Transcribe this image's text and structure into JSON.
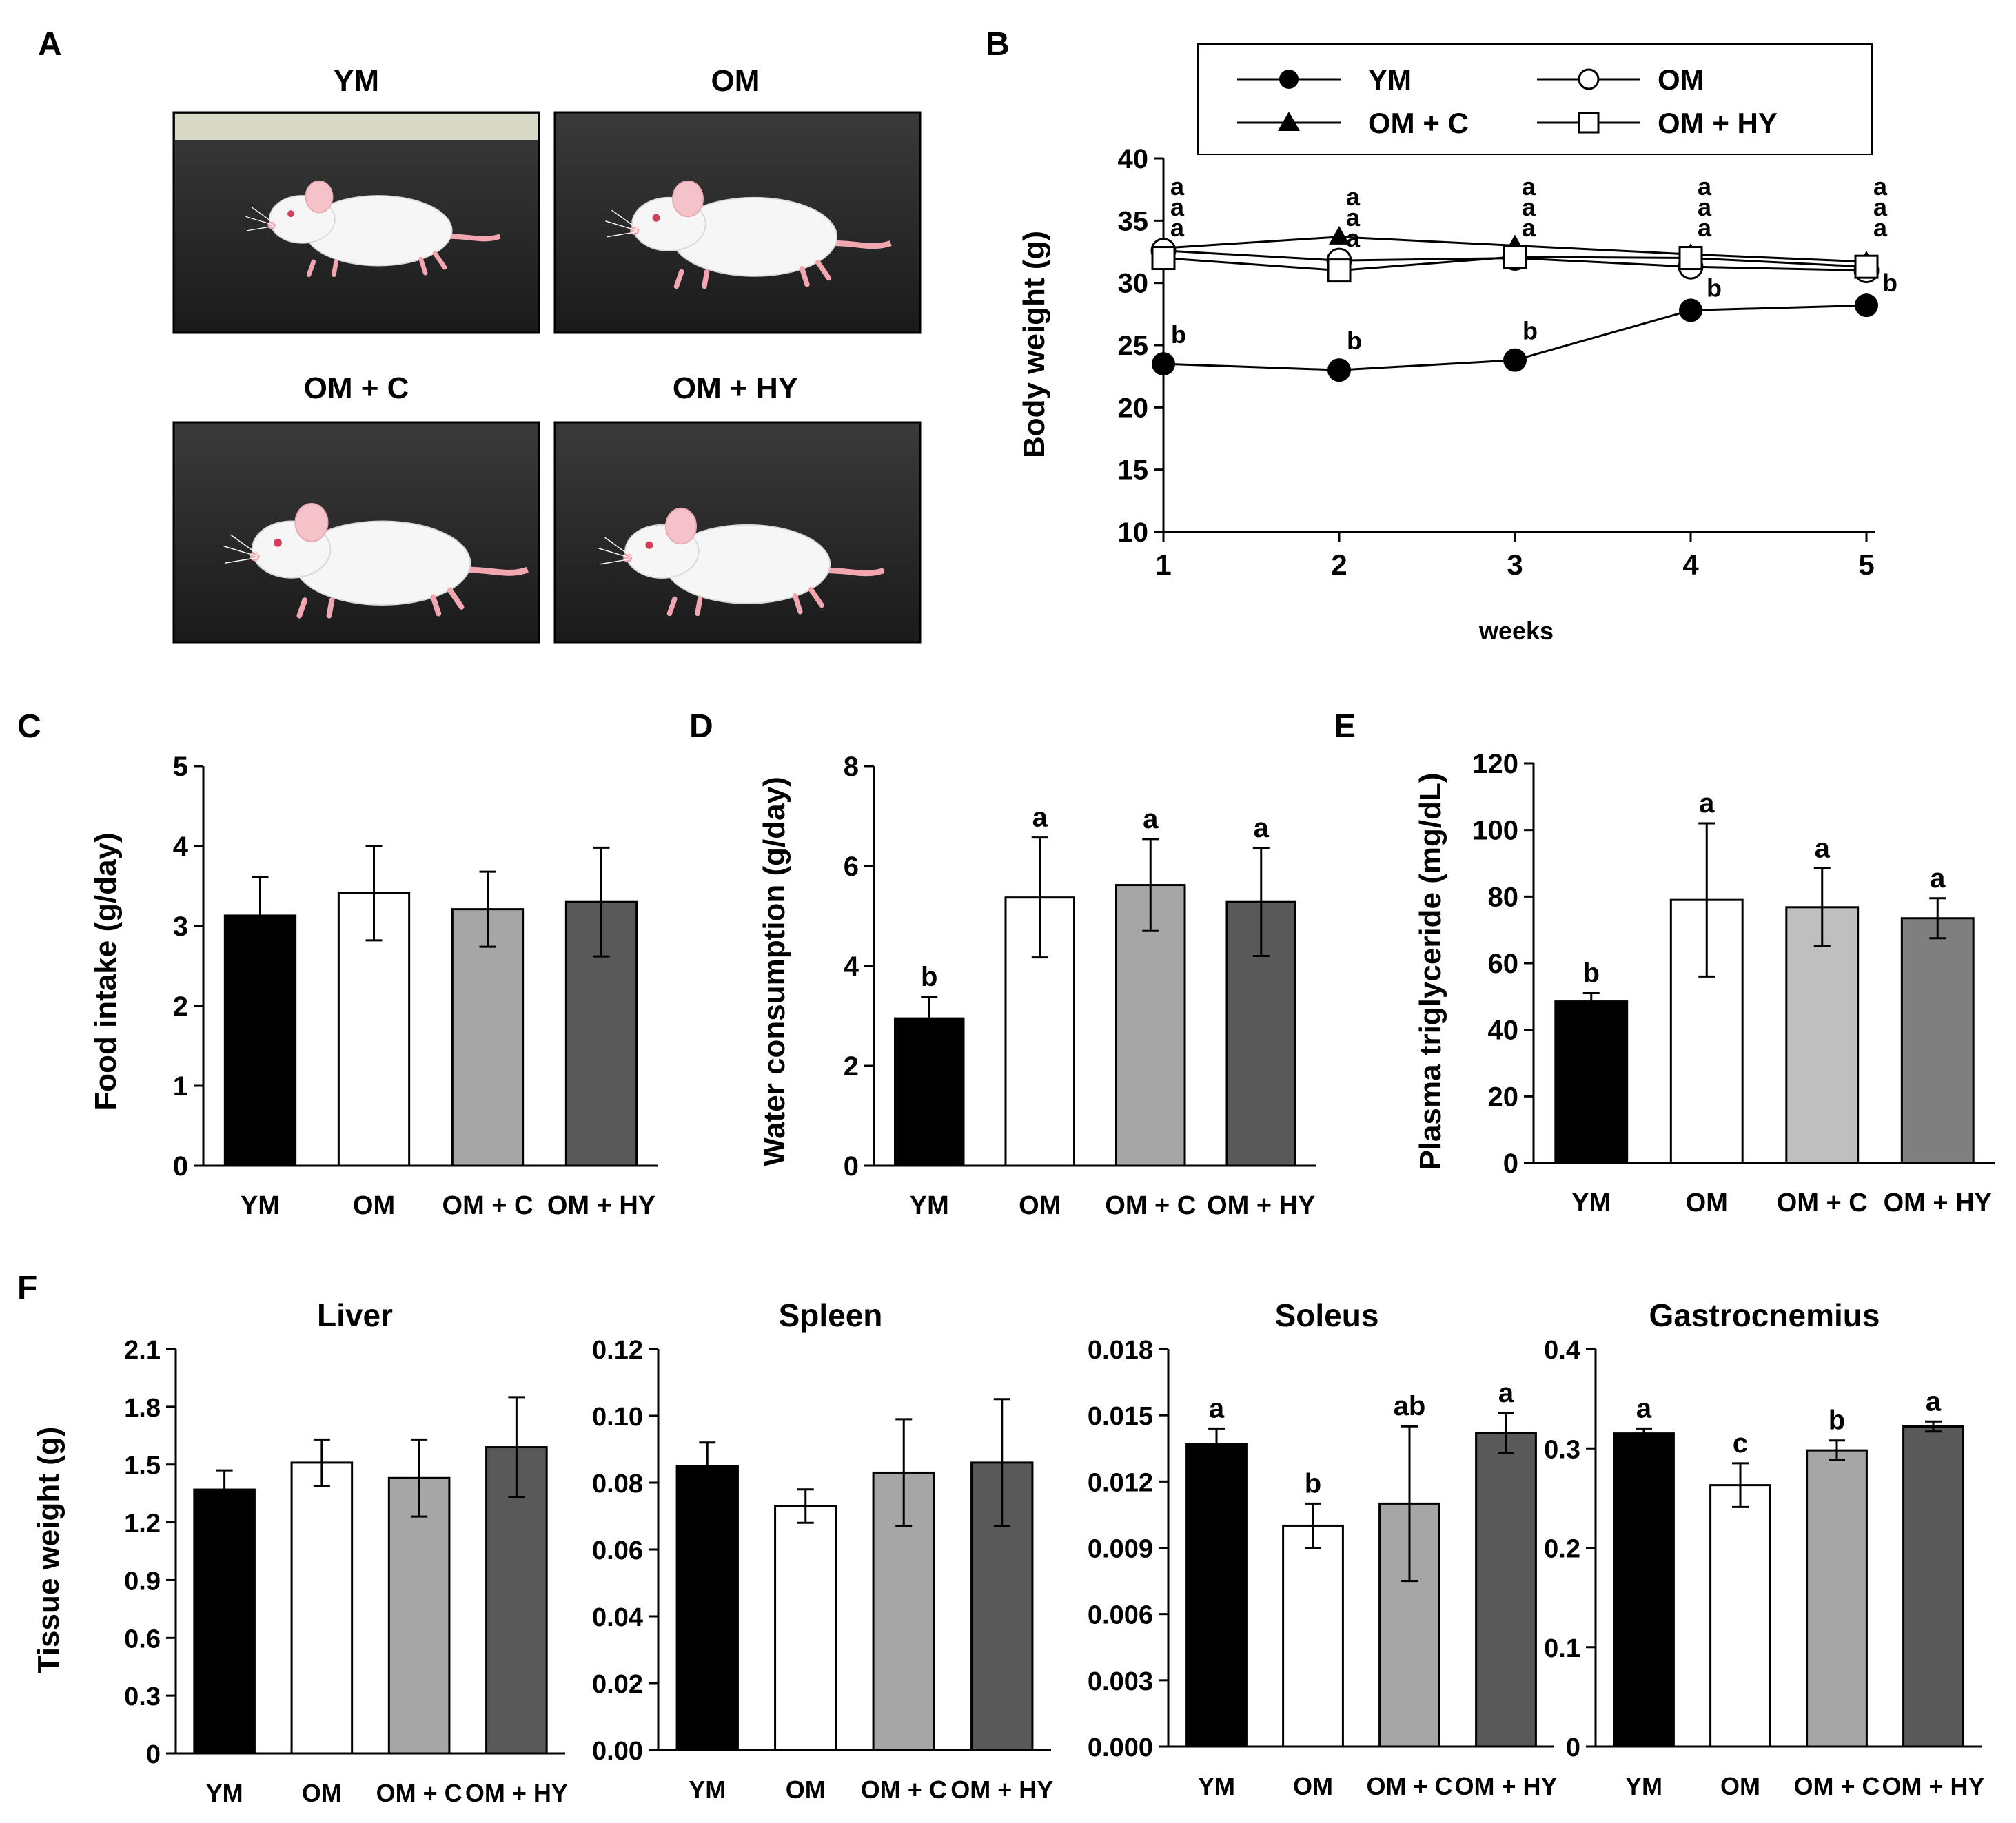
{
  "figure": {
    "panel_letters": {
      "A": "A",
      "B": "B",
      "C": "C",
      "D": "D",
      "E": "E",
      "F": "F"
    }
  },
  "groups": [
    "YM",
    "OM",
    "OM + C",
    "OM + HY"
  ],
  "colors": {
    "ym": "#000000",
    "om": "#ffffff",
    "omc": "#a6a6a6",
    "omhy": "#595959",
    "omc_light": "#bfbfbf",
    "omhy_mid": "#7f7f7f"
  },
  "photos": {
    "titles": [
      "YM",
      "OM",
      "OM + C",
      "OM + HY"
    ]
  },
  "chart_data": [
    {
      "id": "B",
      "type": "line",
      "ylabel": "Body weight (g)",
      "xlabel": "weeks",
      "x": [
        1,
        2,
        3,
        4,
        5
      ],
      "ylim": [
        10,
        40
      ],
      "yticks": [
        10,
        15,
        20,
        25,
        30,
        35,
        40
      ],
      "legend": [
        "YM",
        "OM",
        "OM + C",
        "OM + HY"
      ],
      "series": [
        {
          "name": "YM",
          "marker": "filled-circle",
          "values": [
            23.5,
            23.0,
            23.8,
            27.8,
            28.2
          ],
          "letters": [
            "b",
            "b",
            "b",
            "b",
            "b"
          ]
        },
        {
          "name": "OM",
          "marker": "open-circle",
          "values": [
            32.6,
            31.8,
            32.0,
            31.3,
            31.0
          ],
          "letters": [
            "a",
            "a",
            "a",
            "a",
            "a"
          ]
        },
        {
          "name": "OM + C",
          "marker": "filled-triangle",
          "values": [
            32.8,
            33.7,
            33.0,
            32.3,
            31.7
          ],
          "letters": [
            "a",
            "a",
            "a",
            "a",
            "a"
          ]
        },
        {
          "name": "OM + HY",
          "marker": "open-square",
          "values": [
            32.0,
            31.0,
            32.1,
            32.0,
            31.3
          ],
          "letters": [
            "a",
            "a",
            "a",
            "a",
            "a"
          ]
        }
      ]
    },
    {
      "id": "C",
      "type": "bar",
      "ylabel": "Food intake (g/day)",
      "categories": [
        "YM",
        "OM",
        "OM + C",
        "OM + HY"
      ],
      "values": [
        3.13,
        3.41,
        3.21,
        3.3
      ],
      "errors": [
        0.48,
        0.59,
        0.47,
        0.68
      ],
      "letters": [
        "",
        "",
        "",
        ""
      ],
      "ylim": [
        0,
        5
      ],
      "yticks": [
        0,
        1,
        2,
        3,
        4,
        5
      ]
    },
    {
      "id": "D",
      "type": "bar",
      "ylabel": "Water consumption (g/day)",
      "categories": [
        "YM",
        "OM",
        "OM + C",
        "OM + HY"
      ],
      "values": [
        2.95,
        5.37,
        5.62,
        5.28
      ],
      "errors": [
        0.43,
        1.2,
        0.92,
        1.08
      ],
      "letters": [
        "b",
        "a",
        "a",
        "a"
      ],
      "ylim": [
        0,
        8
      ],
      "yticks": [
        0,
        2,
        4,
        6,
        8
      ]
    },
    {
      "id": "E",
      "type": "bar",
      "ylabel": "Plasma triglyceride (mg/dL)",
      "categories": [
        "YM",
        "OM",
        "OM + C",
        "OM + HY"
      ],
      "values": [
        48.5,
        79.0,
        76.8,
        73.5
      ],
      "errors": [
        2.5,
        23.0,
        11.7,
        6.0
      ],
      "letters": [
        "b",
        "a",
        "a",
        "a"
      ],
      "ylim": [
        0,
        120
      ],
      "yticks": [
        0,
        20,
        40,
        60,
        80,
        100,
        120
      ]
    },
    {
      "id": "F1",
      "type": "bar",
      "title": "Liver",
      "ylabel": "Tissue weight (g)",
      "categories": [
        "YM",
        "OM",
        "OM + C",
        "OM + HY"
      ],
      "values": [
        1.37,
        1.51,
        1.43,
        1.59
      ],
      "errors": [
        0.1,
        0.12,
        0.2,
        0.26
      ],
      "letters": [
        "",
        "",
        "",
        ""
      ],
      "ylim": [
        0,
        2.1
      ],
      "yticks": [
        "0",
        "0.3",
        "0.6",
        "0.9",
        "1.2",
        "1.5",
        "1.8",
        "2.1"
      ]
    },
    {
      "id": "F2",
      "type": "bar",
      "title": "Spleen",
      "categories": [
        "YM",
        "OM",
        "OM + C",
        "OM + HY"
      ],
      "values": [
        0.085,
        0.073,
        0.083,
        0.086
      ],
      "errors": [
        0.007,
        0.005,
        0.016,
        0.019
      ],
      "letters": [
        "",
        "",
        "",
        ""
      ],
      "ylim": [
        0,
        0.12
      ],
      "yticks": [
        "0.00",
        "0.02",
        "0.04",
        "0.06",
        "0.08",
        "0.10",
        "0.12"
      ]
    },
    {
      "id": "F3",
      "type": "bar",
      "title": "Soleus",
      "categories": [
        "YM",
        "OM",
        "OM + C",
        "OM + HY"
      ],
      "values": [
        0.0137,
        0.01,
        0.011,
        0.0142
      ],
      "errors": [
        0.0007,
        0.001,
        0.0035,
        0.0009
      ],
      "letters": [
        "a",
        "b",
        "ab",
        "a"
      ],
      "ylim": [
        0,
        0.018
      ],
      "yticks": [
        "0.000",
        "0.003",
        "0.006",
        "0.009",
        "0.012",
        "0.015",
        "0.018"
      ]
    },
    {
      "id": "F4",
      "type": "bar",
      "title": "Gastrocnemius",
      "categories": [
        "YM",
        "OM",
        "OM + C",
        "OM + HY"
      ],
      "values": [
        0.315,
        0.263,
        0.298,
        0.322
      ],
      "errors": [
        0.005,
        0.022,
        0.01,
        0.005
      ],
      "letters": [
        "a",
        "c",
        "b",
        "a"
      ],
      "ylim": [
        0,
        0.4
      ],
      "yticks": [
        "0",
        "0.1",
        "0.2",
        "0.3",
        "0.4"
      ]
    }
  ]
}
